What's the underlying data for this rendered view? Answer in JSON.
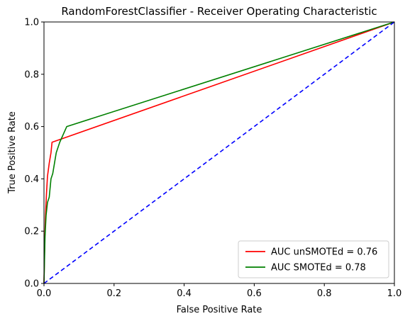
{
  "chart_data": {
    "type": "line",
    "title": "RandomForestClassifier - Receiver Operating Characteristic",
    "xlabel": "False Positive Rate",
    "ylabel": "True Positive Rate",
    "xlim": [
      0,
      1
    ],
    "ylim": [
      0,
      1
    ],
    "xticks": [
      "0.0",
      "0.2",
      "0.4",
      "0.6",
      "0.8",
      "1.0"
    ],
    "yticks": [
      "0.0",
      "0.2",
      "0.4",
      "0.6",
      "0.8",
      "1.0"
    ],
    "grid": false,
    "legend_position": "lower-right",
    "series": [
      {
        "name": "AUC unSMOTEd = 0.76",
        "color": "#ff0000",
        "style": "solid",
        "points": [
          [
            0.0,
            0.0
          ],
          [
            0.002,
            0.15
          ],
          [
            0.004,
            0.25
          ],
          [
            0.007,
            0.34
          ],
          [
            0.01,
            0.41
          ],
          [
            0.015,
            0.46
          ],
          [
            0.02,
            0.5
          ],
          [
            0.023,
            0.54
          ],
          [
            1.0,
            1.0
          ]
        ]
      },
      {
        "name": "AUC SMOTEd = 0.78",
        "color": "#008000",
        "style": "solid",
        "points": [
          [
            0.0,
            0.0
          ],
          [
            0.003,
            0.18
          ],
          [
            0.006,
            0.26
          ],
          [
            0.01,
            0.31
          ],
          [
            0.015,
            0.33
          ],
          [
            0.02,
            0.4
          ],
          [
            0.025,
            0.42
          ],
          [
            0.03,
            0.46
          ],
          [
            0.035,
            0.5
          ],
          [
            0.045,
            0.54
          ],
          [
            0.055,
            0.57
          ],
          [
            0.065,
            0.6
          ],
          [
            1.0,
            1.0
          ]
        ]
      },
      {
        "name": "",
        "color": "#0000ff",
        "style": "dashed",
        "points": [
          [
            0,
            0
          ],
          [
            1,
            1
          ]
        ]
      }
    ]
  }
}
